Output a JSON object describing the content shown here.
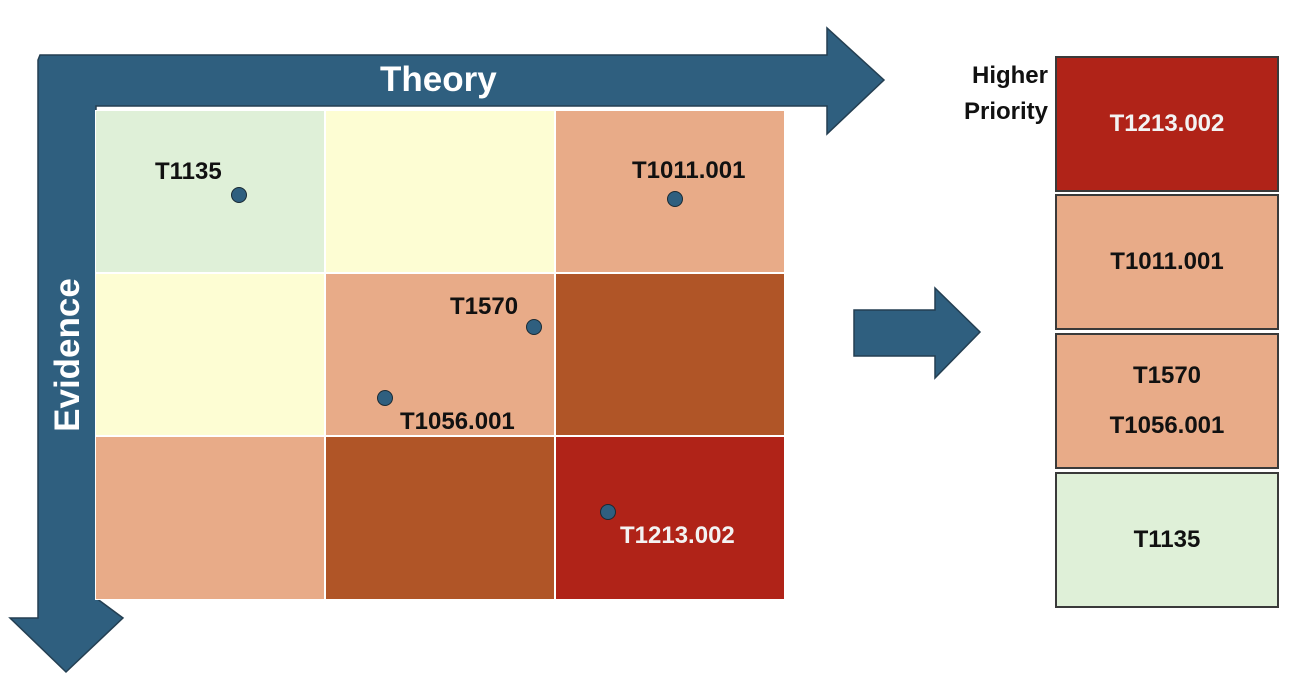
{
  "axes": {
    "x_label": "Theory",
    "y_label": "Evidence"
  },
  "colors": {
    "arrow": "#2f5f7f",
    "green": "#dff0d8",
    "yellow": "#fdfdd3",
    "peach": "#e8ab88",
    "rust": "#b05527",
    "red": "#b02318"
  },
  "grid": {
    "rows": [
      [
        "green",
        "yellow",
        "peach"
      ],
      [
        "yellow",
        "peach",
        "rust"
      ],
      [
        "peach",
        "rust",
        "red"
      ]
    ]
  },
  "points": [
    {
      "id": "T1135"
    },
    {
      "id": "T1011.001"
    },
    {
      "id": "T1570"
    },
    {
      "id": "T1056.001"
    },
    {
      "id": "T1213.002"
    }
  ],
  "priority": {
    "caption_line1": "Higher",
    "caption_line2": "Priority",
    "boxes": [
      {
        "items": [
          "T1213.002"
        ],
        "color": "red"
      },
      {
        "items": [
          "T1011.001"
        ],
        "color": "peach"
      },
      {
        "items": [
          "T1570",
          "T1056.001"
        ],
        "color": "peach"
      },
      {
        "items": [
          "T1135"
        ],
        "color": "green"
      }
    ]
  }
}
